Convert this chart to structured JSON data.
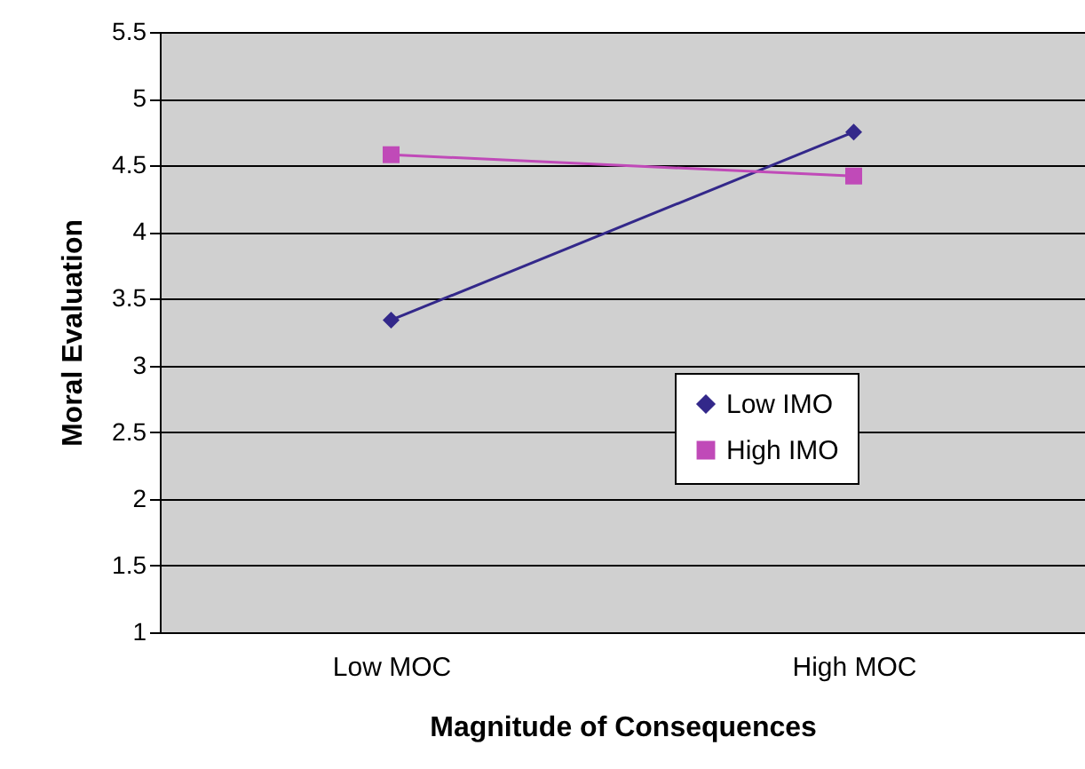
{
  "chart_data": {
    "type": "line",
    "xlabel": "Magnitude of Consequences",
    "ylabel": "Moral Evaluation",
    "categories": [
      "Low MOC",
      "High MOC"
    ],
    "series": [
      {
        "name": "Low IMO",
        "color": "#33288a",
        "marker": "diamond",
        "values": [
          3.34,
          4.75
        ]
      },
      {
        "name": "High IMO",
        "color": "#c04ab8",
        "marker": "square",
        "values": [
          4.58,
          4.42
        ]
      }
    ],
    "ylim": [
      1,
      5.5
    ],
    "yticks": [
      1,
      1.5,
      2,
      2.5,
      3,
      3.5,
      4,
      4.5,
      5,
      5.5
    ],
    "grid": "y",
    "legend": "right",
    "line_style": "solid"
  }
}
